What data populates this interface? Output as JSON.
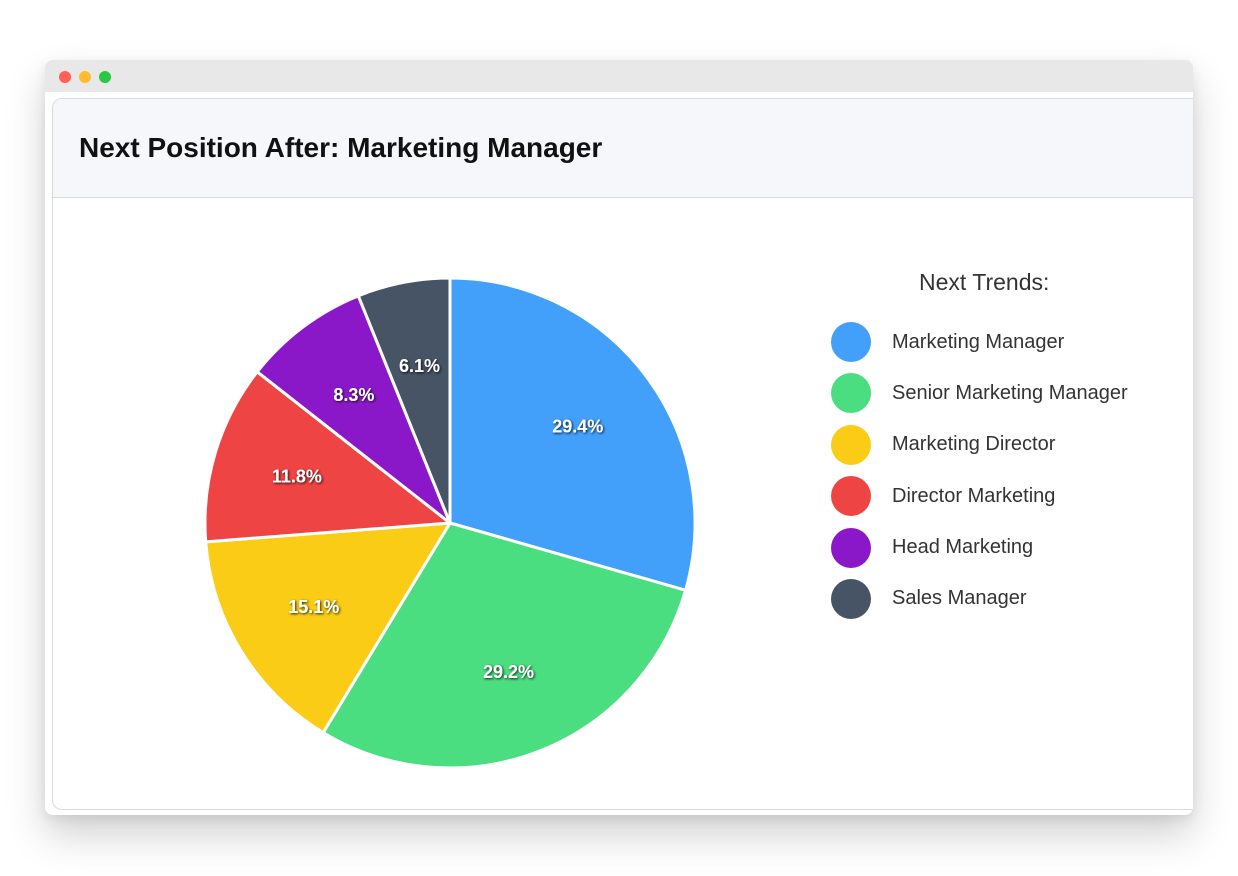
{
  "window": {
    "traffic_lights": [
      "close",
      "minimize",
      "zoom"
    ]
  },
  "header": {
    "title": "Next Position After: Marketing Manager"
  },
  "chart_data": {
    "type": "pie",
    "title": "Next Position After: Marketing Manager",
    "legend_title": "Next Trends:",
    "legend_position": "right",
    "slices": [
      {
        "label": "Marketing Manager",
        "value": 29.4,
        "display": "29.4%",
        "color": "#42a0fb"
      },
      {
        "label": "Senior Marketing Manager",
        "value": 29.2,
        "display": "29.2%",
        "color": "#4ade80"
      },
      {
        "label": "Marketing Director",
        "value": 15.1,
        "display": "15.1%",
        "color": "#facc15"
      },
      {
        "label": "Director Marketing",
        "value": 11.8,
        "display": "11.8%",
        "color": "#ef4444"
      },
      {
        "label": "Head Marketing",
        "value": 8.3,
        "display": "8.3%",
        "color": "#8b18c8"
      },
      {
        "label": "Sales Manager",
        "value": 6.1,
        "display": "6.1%",
        "color": "#465466"
      }
    ]
  }
}
